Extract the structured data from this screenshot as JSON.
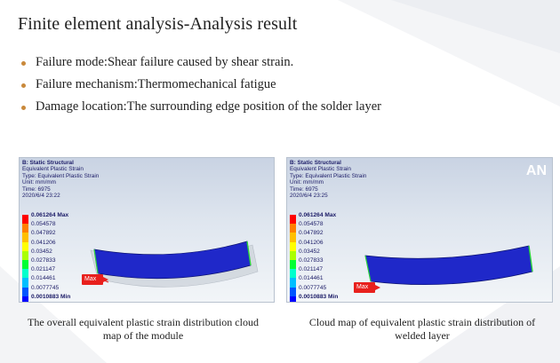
{
  "slide": {
    "title": "Finite element analysis-Analysis result",
    "bullets": [
      "Failure mode:Shear failure caused by shear strain.",
      "Failure mechanism:Thermomechanical fatigue",
      "Damage location:The surrounding edge position of the solder layer"
    ]
  },
  "panels": [
    {
      "header": [
        "B: Static Structural",
        "Equivalent Plastic Strain",
        "Type: Equivalent Plastic Strain",
        "Unit: mm/mm",
        "Time: 6975",
        "2020/6/4 23:22"
      ],
      "legend": [
        "0.061264 Max",
        "0.054578",
        "0.047892",
        "0.041206",
        "0.03452",
        "0.027833",
        "0.021147",
        "0.014461",
        "0.0077745",
        "0.0010883 Min"
      ],
      "max_tag": "Max",
      "caption": "The overall equivalent plastic strain distribution cloud map of the module"
    },
    {
      "header": [
        "B: Static Structural",
        "Equivalent Plastic Strain",
        "Type: Equivalent Plastic Strain",
        "Unit: mm/mm",
        "Time: 6975",
        "2020/6/4 23:25"
      ],
      "legend": [
        "0.061264 Max",
        "0.054578",
        "0.047892",
        "0.041206",
        "0.03452",
        "0.027833",
        "0.021147",
        "0.014461",
        "0.0077745",
        "0.0010883 Min"
      ],
      "max_tag": "Max",
      "corner_logo": "AN",
      "caption": "Cloud map of equivalent plastic strain distribution of welded layer"
    }
  ],
  "legend_colors": [
    "#ff0000",
    "#ff7f00",
    "#ffbf00",
    "#ffff00",
    "#aaff00",
    "#00ff33",
    "#00ffcc",
    "#00bfff",
    "#0055ff",
    "#0000ff"
  ],
  "colors": {
    "bullet": "#c9893b",
    "model": "#1f28c9",
    "max_tag": "#e8201d"
  }
}
